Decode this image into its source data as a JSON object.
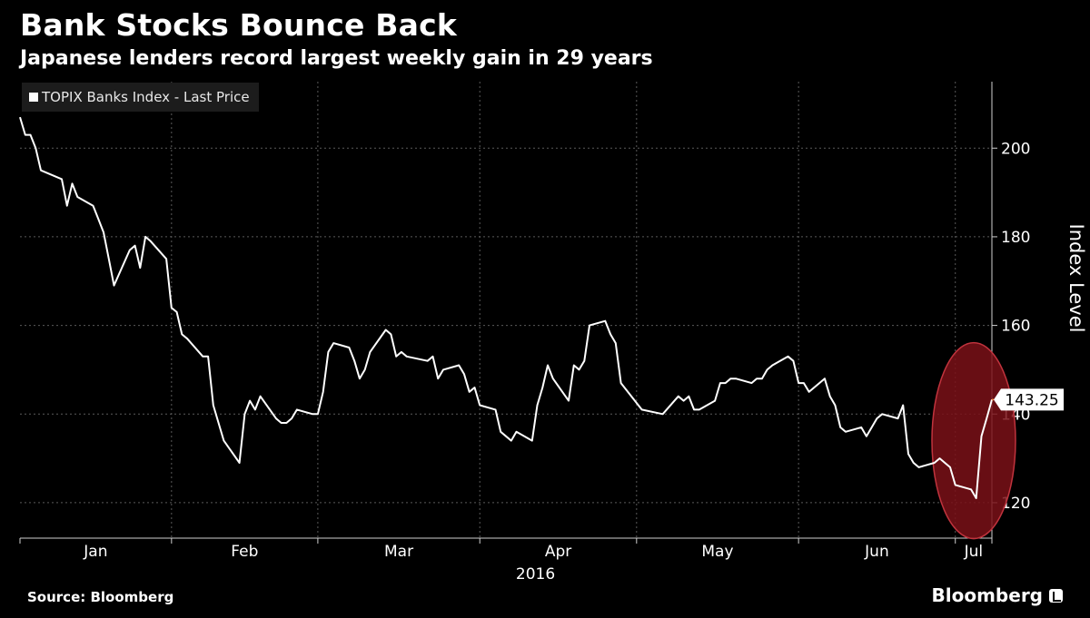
{
  "chart_data": {
    "type": "line",
    "title": "Bank Stocks Bounce Back",
    "subtitle": "Japanese lenders record largest weekly gain in 29 years",
    "legend": [
      "TOPIX Banks Index - Last Price"
    ],
    "legend_position": "top-left",
    "ylabel": "Index Level",
    "ylim": [
      112,
      215
    ],
    "yticks": [
      120,
      140,
      160,
      180,
      200
    ],
    "x_months": [
      "Jan",
      "Feb",
      "Mar",
      "Apr",
      "May",
      "Jun",
      "Jul"
    ],
    "x_year": "2016",
    "grid": true,
    "last_value_label": "143.25",
    "highlight": "ellipse around early July rebound",
    "series": [
      {
        "name": "TOPIX Banks Index - Last Price",
        "color": "#ffffff",
        "x": [
          "2016-01-04",
          "2016-01-05",
          "2016-01-06",
          "2016-01-07",
          "2016-01-08",
          "2016-01-12",
          "2016-01-13",
          "2016-01-14",
          "2016-01-15",
          "2016-01-18",
          "2016-01-19",
          "2016-01-20",
          "2016-01-21",
          "2016-01-22",
          "2016-01-25",
          "2016-01-26",
          "2016-01-27",
          "2016-01-28",
          "2016-01-29",
          "2016-02-01",
          "2016-02-02",
          "2016-02-03",
          "2016-02-04",
          "2016-02-05",
          "2016-02-08",
          "2016-02-09",
          "2016-02-10",
          "2016-02-12",
          "2016-02-15",
          "2016-02-16",
          "2016-02-17",
          "2016-02-18",
          "2016-02-19",
          "2016-02-22",
          "2016-02-23",
          "2016-02-24",
          "2016-02-25",
          "2016-02-26",
          "2016-02-29",
          "2016-03-01",
          "2016-03-02",
          "2016-03-03",
          "2016-03-04",
          "2016-03-07",
          "2016-03-08",
          "2016-03-09",
          "2016-03-10",
          "2016-03-11",
          "2016-03-14",
          "2016-03-15",
          "2016-03-16",
          "2016-03-17",
          "2016-03-18",
          "2016-03-22",
          "2016-03-23",
          "2016-03-24",
          "2016-03-25",
          "2016-03-28",
          "2016-03-29",
          "2016-03-30",
          "2016-03-31",
          "2016-04-01",
          "2016-04-04",
          "2016-04-05",
          "2016-04-06",
          "2016-04-07",
          "2016-04-08",
          "2016-04-11",
          "2016-04-12",
          "2016-04-13",
          "2016-04-14",
          "2016-04-15",
          "2016-04-18",
          "2016-04-19",
          "2016-04-20",
          "2016-04-21",
          "2016-04-22",
          "2016-04-25",
          "2016-04-26",
          "2016-04-27",
          "2016-04-28",
          "2016-05-02",
          "2016-05-06",
          "2016-05-09",
          "2016-05-10",
          "2016-05-11",
          "2016-05-12",
          "2016-05-13",
          "2016-05-16",
          "2016-05-17",
          "2016-05-18",
          "2016-05-19",
          "2016-05-20",
          "2016-05-23",
          "2016-05-24",
          "2016-05-25",
          "2016-05-26",
          "2016-05-27",
          "2016-05-30",
          "2016-05-31",
          "2016-06-01",
          "2016-06-02",
          "2016-06-03",
          "2016-06-06",
          "2016-06-07",
          "2016-06-08",
          "2016-06-09",
          "2016-06-10",
          "2016-06-13",
          "2016-06-14",
          "2016-06-15",
          "2016-06-16",
          "2016-06-17",
          "2016-06-20",
          "2016-06-21",
          "2016-06-22",
          "2016-06-23",
          "2016-06-24",
          "2016-06-27",
          "2016-06-28",
          "2016-06-29",
          "2016-06-30",
          "2016-07-01",
          "2016-07-04",
          "2016-07-05",
          "2016-07-06",
          "2016-07-07",
          "2016-07-08"
        ],
        "values": [
          207,
          203,
          203,
          200,
          195,
          193,
          187,
          192,
          189,
          187,
          184,
          181,
          175,
          169,
          177,
          178,
          173,
          180,
          179,
          175,
          164,
          163,
          158,
          157,
          153,
          153,
          142,
          134,
          129,
          140,
          143,
          141,
          144,
          139,
          138,
          138,
          139,
          141,
          140,
          140,
          145,
          154,
          156,
          155,
          152,
          148,
          150,
          154,
          159,
          158,
          153,
          154,
          153,
          152,
          153,
          148,
          150,
          151,
          149,
          145,
          146,
          142,
          141,
          136,
          135,
          134,
          136,
          134,
          142,
          146,
          151,
          148,
          143,
          151,
          150,
          152,
          160,
          161,
          158,
          156,
          147,
          141,
          140,
          144,
          143,
          144,
          141,
          141,
          143,
          147,
          147,
          148,
          148,
          147,
          148,
          148,
          150,
          151,
          153,
          152,
          147,
          147,
          145,
          148,
          144,
          142,
          137,
          136,
          137,
          135,
          137,
          139,
          140,
          139,
          142,
          131,
          129,
          128,
          129,
          130,
          129,
          128,
          124,
          123,
          121,
          135,
          139,
          143.25
        ]
      }
    ]
  },
  "footer": {
    "source": "Source: Bloomberg",
    "brand": "Bloomberg"
  }
}
